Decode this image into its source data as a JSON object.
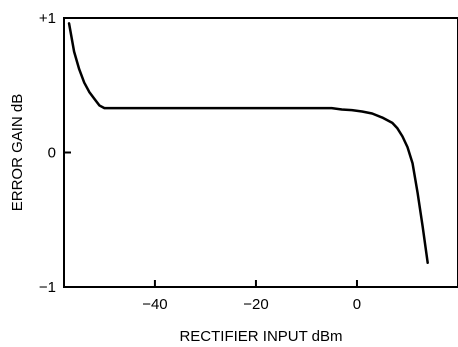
{
  "chart_data": {
    "type": "line",
    "title": "",
    "xlabel": "RECTIFIER INPUT dBm",
    "ylabel": "ERROR GAIN dB",
    "xlim": [
      -58,
      20
    ],
    "ylim": [
      -1,
      1
    ],
    "x_ticks": [
      {
        "value": -40,
        "label": "−40"
      },
      {
        "value": -20,
        "label": "−20"
      },
      {
        "value": 0,
        "label": "0"
      }
    ],
    "y_ticks": [
      {
        "value": 1,
        "label": "+1"
      },
      {
        "value": 0,
        "label": "0"
      },
      {
        "value": -1,
        "label": "−1"
      }
    ],
    "grid": false,
    "line_color": "#000000",
    "series": [
      {
        "x": [
          -57,
          -56,
          -55,
          -54,
          -53,
          -52,
          -51,
          -50,
          -45,
          -40,
          -35,
          -30,
          -25,
          -20,
          -15,
          -10,
          -7,
          -5,
          -3,
          -1,
          1,
          3,
          5,
          7,
          8,
          9,
          10,
          11,
          12,
          13,
          14
        ],
        "y": [
          0.96,
          0.75,
          0.62,
          0.52,
          0.45,
          0.4,
          0.35,
          0.33,
          0.33,
          0.33,
          0.33,
          0.33,
          0.33,
          0.33,
          0.33,
          0.33,
          0.33,
          0.33,
          0.32,
          0.315,
          0.305,
          0.29,
          0.26,
          0.22,
          0.18,
          0.12,
          0.04,
          -0.08,
          -0.3,
          -0.55,
          -0.82
        ]
      }
    ]
  }
}
